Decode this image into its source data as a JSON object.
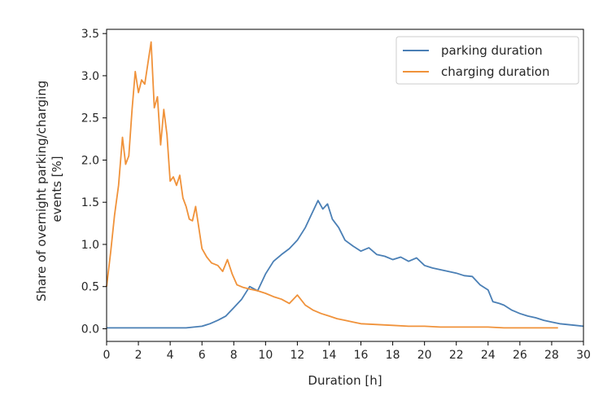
{
  "chart_data": {
    "type": "line",
    "title": "",
    "xlabel": "Duration [h]",
    "ylabel_lines": [
      "Share of overnight parking/charging",
      "events [%]"
    ],
    "xlim": [
      0,
      30
    ],
    "ylim": [
      -0.15,
      3.55
    ],
    "xticks": [
      0,
      2,
      4,
      6,
      8,
      10,
      12,
      14,
      16,
      18,
      20,
      22,
      24,
      26,
      28,
      30
    ],
    "yticks": [
      0.0,
      0.5,
      1.0,
      1.5,
      2.0,
      2.5,
      3.0,
      3.5
    ],
    "ytick_labels": [
      "0.0",
      "0.5",
      "1.0",
      "1.5",
      "2.0",
      "2.5",
      "3.0",
      "3.5"
    ],
    "grid": false,
    "legend_position": "top-right",
    "series": [
      {
        "name": "parking duration",
        "color": "#4a7fb5",
        "x": [
          0,
          1,
          2,
          3,
          4,
          5,
          5.5,
          6,
          6.5,
          7,
          7.5,
          8,
          8.5,
          9,
          9.5,
          10,
          10.5,
          11,
          11.5,
          12,
          12.5,
          13,
          13.3,
          13.6,
          13.9,
          14.2,
          14.6,
          15,
          15.5,
          16,
          16.5,
          17,
          17.5,
          18,
          18.5,
          19,
          19.5,
          20,
          20.5,
          21,
          21.5,
          22,
          22.5,
          23,
          23.5,
          24,
          24.3,
          24.7,
          25,
          25.5,
          26,
          26.5,
          27,
          27.5,
          28,
          28.5,
          29,
          29.5,
          30
        ],
        "y": [
          0.01,
          0.01,
          0.01,
          0.01,
          0.01,
          0.01,
          0.02,
          0.03,
          0.06,
          0.1,
          0.15,
          0.25,
          0.35,
          0.5,
          0.45,
          0.65,
          0.8,
          0.88,
          0.95,
          1.05,
          1.2,
          1.4,
          1.52,
          1.42,
          1.48,
          1.3,
          1.2,
          1.05,
          0.98,
          0.92,
          0.96,
          0.88,
          0.86,
          0.82,
          0.85,
          0.8,
          0.84,
          0.75,
          0.72,
          0.7,
          0.68,
          0.66,
          0.63,
          0.62,
          0.52,
          0.46,
          0.32,
          0.3,
          0.28,
          0.22,
          0.18,
          0.15,
          0.13,
          0.1,
          0.08,
          0.06,
          0.05,
          0.04,
          0.03
        ]
      },
      {
        "name": "charging duration",
        "color": "#f0923a",
        "x": [
          0,
          0.25,
          0.5,
          0.75,
          1,
          1.2,
          1.4,
          1.6,
          1.8,
          2,
          2.2,
          2.4,
          2.6,
          2.8,
          3,
          3.2,
          3.4,
          3.6,
          3.8,
          4,
          4.2,
          4.4,
          4.6,
          4.8,
          5,
          5.2,
          5.4,
          5.6,
          5.8,
          6,
          6.3,
          6.6,
          7,
          7.3,
          7.6,
          7.9,
          8.2,
          8.6,
          9,
          9.5,
          10,
          10.5,
          11,
          11.5,
          12,
          12.5,
          13,
          13.5,
          14,
          14.5,
          15,
          15.5,
          16,
          17,
          18,
          19,
          20,
          21,
          22,
          23,
          24,
          25,
          26,
          27,
          28.4
        ],
        "y": [
          0.5,
          0.9,
          1.35,
          1.7,
          2.27,
          1.95,
          2.05,
          2.6,
          3.05,
          2.8,
          2.95,
          2.9,
          3.15,
          3.4,
          2.62,
          2.75,
          2.18,
          2.6,
          2.3,
          1.75,
          1.8,
          1.7,
          1.82,
          1.55,
          1.45,
          1.3,
          1.28,
          1.45,
          1.2,
          0.95,
          0.85,
          0.78,
          0.75,
          0.68,
          0.82,
          0.65,
          0.52,
          0.49,
          0.47,
          0.45,
          0.42,
          0.38,
          0.35,
          0.3,
          0.4,
          0.28,
          0.22,
          0.18,
          0.15,
          0.12,
          0.1,
          0.08,
          0.06,
          0.05,
          0.04,
          0.03,
          0.03,
          0.02,
          0.02,
          0.02,
          0.02,
          0.01,
          0.01,
          0.01,
          0.01
        ]
      }
    ]
  }
}
